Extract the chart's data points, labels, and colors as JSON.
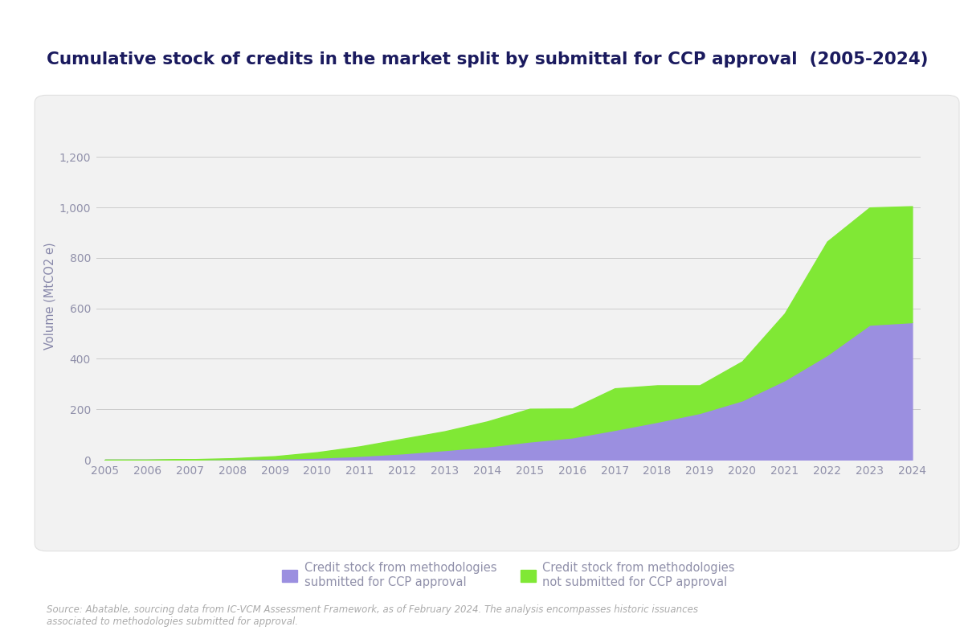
{
  "title": "Cumulative stock of credits in the market split by submittal for CCP approval  (2005-2024)",
  "ylabel": "Volume (MtCO2 e)",
  "source_text": "Source: Abatable, sourcing data from IC-VCM Assessment Framework, as of February 2024. The analysis encompasses historic issuances\nassociated to methodologies submitted for approval.",
  "years": [
    2005,
    2006,
    2007,
    2008,
    2009,
    2010,
    2011,
    2012,
    2013,
    2014,
    2015,
    2016,
    2017,
    2018,
    2019,
    2020,
    2021,
    2022,
    2023,
    2024
  ],
  "submitted": [
    0,
    0,
    1,
    2,
    4,
    8,
    15,
    25,
    38,
    52,
    72,
    88,
    118,
    150,
    185,
    235,
    315,
    415,
    535,
    545
  ],
  "not_submitted": [
    0,
    0,
    1,
    4,
    10,
    22,
    38,
    58,
    75,
    100,
    130,
    115,
    165,
    145,
    110,
    155,
    265,
    450,
    465,
    460
  ],
  "submitted_color": "#9B8FE0",
  "not_submitted_color": "#80E835",
  "background_color": "#f2f2f2",
  "outer_background": "#ffffff",
  "title_color": "#1a1a5e",
  "axis_label_color": "#8888aa",
  "tick_color": "#9090aa",
  "grid_color": "#cccccc",
  "source_color": "#aaaaaa",
  "ylim": [
    0,
    1300
  ],
  "yticks": [
    0,
    200,
    400,
    600,
    800,
    1000,
    1200
  ],
  "legend_label_submitted": "Credit stock from methodologies\nsubmitted for CCP approval",
  "legend_label_not_submitted": "Credit stock from methodologies\nnot submitted for CCP approval",
  "title_fontsize": 15.5,
  "axis_fontsize": 10.5,
  "tick_fontsize": 10,
  "source_fontsize": 8.5
}
